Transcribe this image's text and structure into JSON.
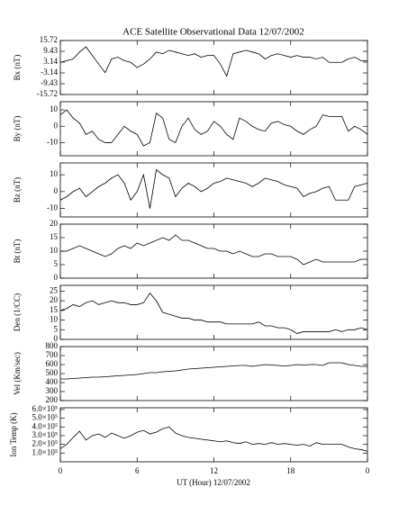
{
  "chart_data": [
    {
      "type": "line",
      "title": "ACE Satellite Observational Data   12/07/2002",
      "ylabel": "Bx (nT)",
      "color": "#000000",
      "x": [
        0,
        0.5,
        1,
        1.5,
        2,
        2.5,
        3,
        3.5,
        4,
        4.5,
        5,
        5.5,
        6,
        6.5,
        7,
        7.5,
        8,
        8.5,
        9,
        9.5,
        10,
        10.5,
        11,
        11.5,
        12,
        12.5,
        13,
        13.5,
        14,
        14.5,
        15,
        15.5,
        16,
        16.5,
        17,
        17.5,
        18,
        18.5,
        19,
        19.5,
        20,
        20.5,
        21,
        21.5,
        22,
        22.5,
        23,
        23.5,
        24
      ],
      "values": [
        3,
        4,
        5,
        9,
        12,
        7,
        2,
        -3,
        5,
        6,
        4,
        3,
        0,
        2,
        5,
        9,
        8,
        10,
        9,
        8,
        7,
        8,
        6,
        7,
        7,
        2,
        -5,
        8,
        9,
        10,
        9,
        8,
        5,
        7,
        8,
        7,
        6,
        7,
        6,
        6,
        5,
        6,
        3,
        3,
        3,
        5,
        6,
        4,
        4
      ],
      "ylim": [
        -15.72,
        15.72
      ],
      "yticks": [
        -15.72,
        -9.43,
        -3.14,
        3.14,
        9.43,
        15.72
      ]
    },
    {
      "type": "line",
      "ylabel": "By (nT)",
      "color": "#000000",
      "x": [
        0,
        0.5,
        1,
        1.5,
        2,
        2.5,
        3,
        3.5,
        4,
        4.5,
        5,
        5.5,
        6,
        6.5,
        7,
        7.5,
        8,
        8.5,
        9,
        9.5,
        10,
        10.5,
        11,
        11.5,
        12,
        12.5,
        13,
        13.5,
        14,
        14.5,
        15,
        15.5,
        16,
        16.5,
        17,
        17.5,
        18,
        18.5,
        19,
        19.5,
        20,
        20.5,
        21,
        21.5,
        22,
        22.5,
        23,
        23.5,
        24
      ],
      "values": [
        7,
        10,
        5,
        2,
        -5,
        -3,
        -8,
        -10,
        -10,
        -5,
        0,
        -3,
        -5,
        -12,
        -10,
        8,
        5,
        -8,
        -10,
        0,
        5,
        -2,
        -5,
        -3,
        3,
        0,
        -5,
        -8,
        5,
        3,
        0,
        -2,
        -3,
        2,
        3,
        1,
        0,
        -3,
        -5,
        -2,
        0,
        7,
        6,
        6,
        6,
        -3,
        0,
        -2,
        -5
      ],
      "ylim": [
        -18,
        15
      ],
      "yticks": [
        -10,
        0,
        10
      ]
    },
    {
      "type": "line",
      "ylabel": "Bz (nT)",
      "color": "#000000",
      "x": [
        0,
        0.5,
        1,
        1.5,
        2,
        2.5,
        3,
        3.5,
        4,
        4.5,
        5,
        5.5,
        6,
        6.5,
        7,
        7.5,
        8,
        8.5,
        9,
        9.5,
        10,
        10.5,
        11,
        11.5,
        12,
        12.5,
        13,
        13.5,
        14,
        14.5,
        15,
        15.5,
        16,
        16.5,
        17,
        17.5,
        18,
        18.5,
        19,
        19.5,
        20,
        20.5,
        21,
        21.5,
        22,
        22.5,
        23,
        23.5,
        24
      ],
      "values": [
        -5,
        -3,
        0,
        2,
        -3,
        0,
        3,
        5,
        8,
        10,
        5,
        -5,
        0,
        10,
        -10,
        13,
        10,
        8,
        -3,
        2,
        5,
        3,
        0,
        2,
        5,
        6,
        8,
        7,
        6,
        5,
        3,
        5,
        8,
        7,
        6,
        4,
        3,
        2,
        -3,
        -1,
        0,
        2,
        3,
        -5,
        -5,
        -5,
        3,
        4,
        5
      ],
      "ylim": [
        -15,
        17
      ],
      "yticks": [
        -10,
        0,
        10
      ]
    },
    {
      "type": "line",
      "ylabel": "Bt (nT)",
      "color": "#000000",
      "x": [
        0,
        0.5,
        1,
        1.5,
        2,
        2.5,
        3,
        3.5,
        4,
        4.5,
        5,
        5.5,
        6,
        6.5,
        7,
        7.5,
        8,
        8.5,
        9,
        9.5,
        10,
        10.5,
        11,
        11.5,
        12,
        12.5,
        13,
        13.5,
        14,
        14.5,
        15,
        15.5,
        16,
        16.5,
        17,
        17.5,
        18,
        18.5,
        19,
        19.5,
        20,
        20.5,
        21,
        21.5,
        22,
        22.5,
        23,
        23.5,
        24
      ],
      "values": [
        10,
        10,
        11,
        12,
        11,
        10,
        9,
        8,
        9,
        11,
        12,
        11,
        13,
        12,
        13,
        14,
        15,
        14,
        16,
        14,
        14,
        13,
        12,
        11,
        11,
        10,
        10,
        9,
        10,
        9,
        8,
        8,
        9,
        9,
        8,
        8,
        8,
        7,
        5,
        6,
        7,
        6,
        6,
        6,
        6,
        6,
        6,
        7,
        7
      ],
      "ylim": [
        0,
        20
      ],
      "yticks": [
        0,
        5,
        10,
        15,
        20
      ]
    },
    {
      "type": "line",
      "ylabel": "Den (1/CC)",
      "color": "#000000",
      "x": [
        0,
        0.5,
        1,
        1.5,
        2,
        2.5,
        3,
        3.5,
        4,
        4.5,
        5,
        5.5,
        6,
        6.5,
        7,
        7.5,
        8,
        8.5,
        9,
        9.5,
        10,
        10.5,
        11,
        11.5,
        12,
        12.5,
        13,
        13.5,
        14,
        14.5,
        15,
        15.5,
        16,
        16.5,
        17,
        17.5,
        18,
        18.5,
        19,
        19.5,
        20,
        20.5,
        21,
        21.5,
        22,
        22.5,
        23,
        23.5,
        24
      ],
      "values": [
        15,
        16,
        18,
        17,
        19,
        20,
        18,
        19,
        20,
        19,
        19,
        18,
        18,
        19,
        24,
        20,
        14,
        13,
        12,
        11,
        11,
        10,
        10,
        9,
        9,
        9,
        8,
        8,
        8,
        8,
        8,
        9,
        7,
        7,
        6,
        6,
        5,
        3,
        4,
        4,
        4,
        4,
        4,
        5,
        4,
        5,
        5,
        6,
        5
      ],
      "ylim": [
        0,
        28
      ],
      "yticks": [
        0,
        5,
        10,
        15,
        20,
        25
      ]
    },
    {
      "type": "line",
      "ylabel": "Vel (Km/sec)",
      "color": "#000000",
      "x": [
        0,
        0.5,
        1,
        1.5,
        2,
        2.5,
        3,
        3.5,
        4,
        4.5,
        5,
        5.5,
        6,
        6.5,
        7,
        7.5,
        8,
        8.5,
        9,
        9.5,
        10,
        10.5,
        11,
        11.5,
        12,
        12.5,
        13,
        13.5,
        14,
        14.5,
        15,
        15.5,
        16,
        16.5,
        17,
        17.5,
        18,
        18.5,
        19,
        19.5,
        20,
        20.5,
        21,
        21.5,
        22,
        22.5,
        23,
        23.5,
        24
      ],
      "values": [
        440,
        440,
        445,
        450,
        455,
        460,
        460,
        465,
        470,
        475,
        480,
        485,
        490,
        500,
        510,
        510,
        520,
        525,
        530,
        540,
        550,
        555,
        560,
        565,
        570,
        575,
        580,
        585,
        590,
        590,
        580,
        590,
        600,
        595,
        590,
        585,
        590,
        600,
        595,
        600,
        600,
        590,
        620,
        620,
        620,
        600,
        590,
        580,
        580
      ],
      "ylim": [
        200,
        800
      ],
      "yticks": [
        200,
        300,
        400,
        500,
        600,
        700,
        800
      ]
    },
    {
      "type": "line",
      "ylabel": "Ion Temp (K)",
      "color": "#000000",
      "xlabel": "UT (Hour)  12/07/2002",
      "x": [
        0,
        0.5,
        1,
        1.5,
        2,
        2.5,
        3,
        3.5,
        4,
        4.5,
        5,
        5.5,
        6,
        6.5,
        7,
        7.5,
        8,
        8.5,
        9,
        9.5,
        10,
        10.5,
        11,
        11.5,
        12,
        12.5,
        13,
        13.5,
        14,
        14.5,
        15,
        15.5,
        16,
        16.5,
        17,
        17.5,
        18,
        18.5,
        19,
        19.5,
        20,
        20.5,
        21,
        21.5,
        22,
        22.5,
        23,
        23.5,
        24
      ],
      "values": [
        150000,
        200000,
        280000,
        350000,
        250000,
        300000,
        320000,
        280000,
        330000,
        300000,
        270000,
        300000,
        340000,
        360000,
        320000,
        340000,
        380000,
        400000,
        330000,
        300000,
        280000,
        270000,
        260000,
        250000,
        240000,
        230000,
        240000,
        220000,
        210000,
        230000,
        200000,
        210000,
        200000,
        220000,
        200000,
        210000,
        200000,
        190000,
        200000,
        180000,
        220000,
        200000,
        200000,
        200000,
        200000,
        170000,
        150000,
        140000,
        120000
      ],
      "ylim": [
        0,
        620000
      ],
      "yticks": [
        {
          "value": 100000,
          "label": "1.0×10⁵"
        },
        {
          "value": 200000,
          "label": "2.0×10⁵"
        },
        {
          "value": 300000,
          "label": "3.0×10⁵"
        },
        {
          "value": 400000,
          "label": "4.0×10⁵"
        },
        {
          "value": 500000,
          "label": "5.0×10⁵"
        },
        {
          "value": 600000,
          "label": "6.0×10⁵"
        }
      ],
      "xlim": [
        0,
        24
      ],
      "xticks": [
        0,
        6,
        12,
        18,
        {
          "value": 24,
          "label": "0"
        }
      ]
    }
  ]
}
